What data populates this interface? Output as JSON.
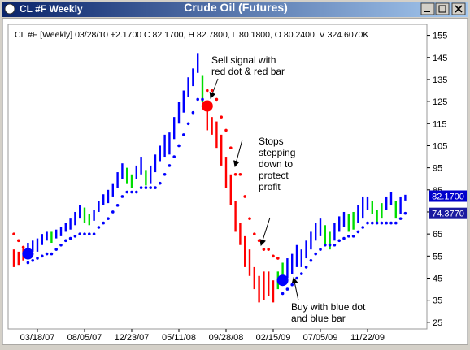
{
  "chart_data": {
    "type": "ohlc",
    "window_title": "CL #F Weekly",
    "title": "Crude Oil (Futures)",
    "info": "CL #F [Weekly] 03/28/10 +2.1700 C 82.1700, H 82.7800, L 80.1800, O 80.2400, V 324.6070K",
    "categories": [
      null,
      null,
      null,
      null,
      null,
      "03/18/07",
      null,
      null,
      null,
      null,
      null,
      null,
      null,
      null,
      null,
      "08/05/07",
      null,
      null,
      null,
      null,
      null,
      null,
      null,
      null,
      null,
      "12/23/07",
      null,
      null,
      null,
      null,
      null,
      null,
      null,
      null,
      null,
      "05/11/08",
      null,
      null,
      null,
      null,
      null,
      null,
      null,
      null,
      null,
      "09/28/08",
      null,
      null,
      null,
      null,
      null,
      null,
      null,
      null,
      null,
      "02/15/09",
      null,
      null,
      null,
      null,
      null,
      null,
      null,
      null,
      null,
      "07/05/09",
      null,
      null,
      null,
      null,
      null,
      null,
      null,
      null,
      null,
      "11/22/09",
      null,
      null,
      null,
      null,
      null,
      null,
      null,
      null
    ],
    "high": [
      58,
      57,
      59,
      61,
      62,
      63,
      65,
      66,
      66,
      67,
      68,
      70,
      72,
      75,
      78,
      77,
      74,
      76,
      80,
      83,
      85,
      88,
      93,
      97,
      95,
      92,
      96,
      100,
      94,
      96,
      101,
      105,
      110,
      111,
      118,
      125,
      130,
      136,
      140,
      147,
      137,
      124,
      118,
      116,
      110,
      100,
      92,
      80,
      70,
      64,
      58,
      50,
      46,
      48,
      48,
      44,
      48,
      52,
      54,
      56,
      60,
      58,
      62,
      66,
      70,
      72,
      69,
      66,
      70,
      73,
      75,
      74,
      75,
      78,
      82,
      82,
      80,
      76,
      79,
      82,
      84,
      80,
      82,
      82.78
    ],
    "low": [
      50,
      51,
      53,
      55,
      57,
      57,
      60,
      62,
      61,
      63,
      64,
      66,
      67,
      69,
      72,
      70,
      69,
      71,
      75,
      78,
      79,
      82,
      86,
      90,
      88,
      86,
      90,
      92,
      87,
      88,
      93,
      98,
      100,
      101,
      108,
      115,
      120,
      127,
      132,
      138,
      125,
      112,
      110,
      104,
      96,
      86,
      78,
      66,
      60,
      50,
      46,
      40,
      34,
      35,
      37,
      34,
      40,
      42,
      45,
      47,
      50,
      50,
      54,
      58,
      62,
      64,
      60,
      58,
      62,
      66,
      68,
      66,
      67,
      70,
      72,
      76,
      74,
      70,
      72,
      76,
      78,
      72,
      74,
      80.18
    ],
    "bar_colors": [
      "#ff0000",
      "#ff0000",
      "#ff0000",
      "#0000ff",
      "#0000ff",
      "#0000ff",
      "#0000ff",
      "#0000ff",
      "#00dd00",
      "#0000ff",
      "#0000ff",
      "#0000ff",
      "#0000ff",
      "#0000ff",
      "#0000ff",
      "#00dd00",
      "#00dd00",
      "#0000ff",
      "#0000ff",
      "#0000ff",
      "#0000ff",
      "#0000ff",
      "#0000ff",
      "#0000ff",
      "#00dd00",
      "#00dd00",
      "#0000ff",
      "#0000ff",
      "#00dd00",
      "#0000ff",
      "#0000ff",
      "#0000ff",
      "#0000ff",
      "#0000ff",
      "#0000ff",
      "#0000ff",
      "#0000ff",
      "#0000ff",
      "#0000ff",
      "#0000ff",
      "#00dd00",
      "#ff0000",
      "#ff0000",
      "#ff0000",
      "#ff0000",
      "#ff0000",
      "#ff0000",
      "#ff0000",
      "#ff0000",
      "#ff0000",
      "#ff0000",
      "#ff0000",
      "#ff0000",
      "#ff0000",
      "#ff0000",
      "#ff0000",
      "#00dd00",
      "#00dd00",
      "#0000ff",
      "#0000ff",
      "#0000ff",
      "#0000ff",
      "#0000ff",
      "#0000ff",
      "#0000ff",
      "#0000ff",
      "#00dd00",
      "#00dd00",
      "#0000ff",
      "#0000ff",
      "#0000ff",
      "#00dd00",
      "#00dd00",
      "#0000ff",
      "#0000ff",
      "#0000ff",
      "#00dd00",
      "#00dd00",
      "#00dd00",
      "#0000ff",
      "#0000ff",
      "#00dd00",
      "#0000ff",
      "#0000ff"
    ],
    "long_stops": {
      "color": "#0000ff",
      "values": [
        null,
        null,
        null,
        52,
        53,
        54,
        55,
        56,
        56,
        58,
        60,
        62,
        63,
        64,
        65,
        65,
        65,
        65,
        68,
        70,
        72,
        75,
        78,
        82,
        84,
        84,
        84,
        86,
        86,
        86,
        86,
        88,
        92,
        96,
        100,
        105,
        110,
        115,
        120,
        126,
        126,
        null,
        null,
        null,
        null,
        null,
        null,
        null,
        null,
        null,
        null,
        null,
        null,
        null,
        null,
        null,
        null,
        38,
        40,
        42,
        45,
        47,
        50,
        53,
        56,
        58,
        60,
        60,
        60,
        62,
        63,
        64,
        64,
        66,
        68,
        70,
        70,
        70,
        70,
        70,
        70,
        70,
        72,
        74.377
      ]
    },
    "short_stops": {
      "color": "#ff0000",
      "values": [
        65,
        62,
        59,
        null,
        null,
        null,
        null,
        null,
        null,
        null,
        null,
        null,
        null,
        null,
        null,
        null,
        null,
        null,
        null,
        null,
        null,
        null,
        null,
        null,
        null,
        null,
        null,
        null,
        null,
        null,
        null,
        null,
        null,
        null,
        null,
        null,
        null,
        null,
        null,
        null,
        null,
        130,
        130,
        126,
        118,
        112,
        104,
        92,
        92,
        82,
        72,
        65,
        62,
        58,
        58,
        55,
        54,
        null,
        null,
        null,
        null,
        null,
        null,
        null,
        null,
        null,
        null,
        null,
        null,
        null,
        null,
        null,
        null,
        null,
        null,
        null,
        null,
        null,
        null,
        null,
        null,
        null,
        null,
        null
      ]
    },
    "signals": [
      {
        "index": 3,
        "value": 56,
        "color": "#0000ff"
      },
      {
        "index": 41,
        "value": 123,
        "color": "#ff0000"
      },
      {
        "index": 57,
        "value": 44,
        "color": "#0000ff"
      }
    ],
    "last_price": {
      "value": 82.17,
      "label": "82.1700",
      "color": "#0000cc"
    },
    "stop_price": {
      "value": 74.377,
      "label": "74.3770",
      "color": "#1a1aa0"
    },
    "ylim": [
      22,
      160
    ],
    "yticks": [
      25,
      35,
      45,
      55,
      65,
      75,
      85,
      95,
      105,
      115,
      125,
      135,
      145,
      155
    ],
    "annotations": [
      {
        "lines": [
          "Sell signal with",
          "red dot & red bar"
        ]
      },
      {
        "lines": [
          "Stops",
          "stepping",
          "down to",
          "protect",
          "profit"
        ]
      },
      {
        "lines": [
          "Buy with blue dot",
          "and blue bar"
        ]
      }
    ]
  }
}
